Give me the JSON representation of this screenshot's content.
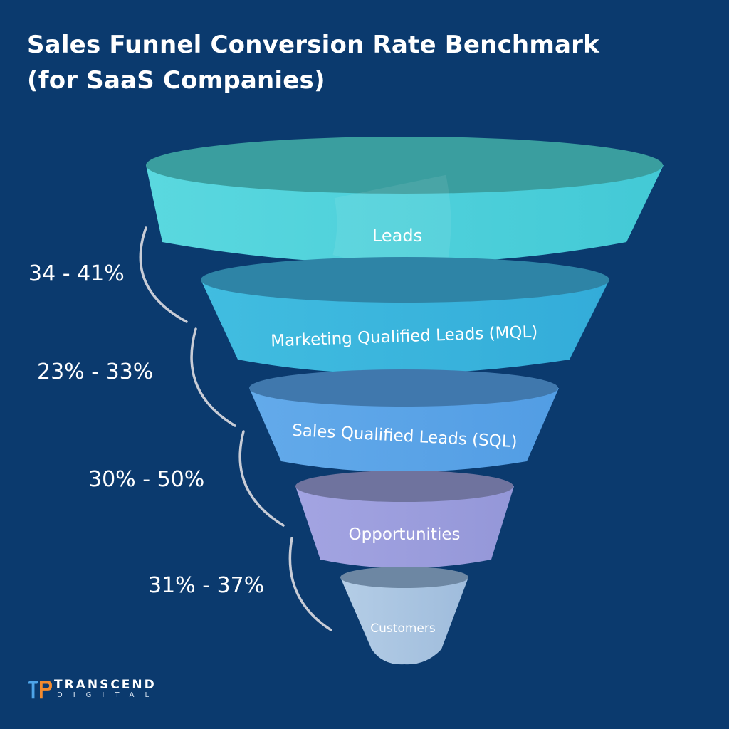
{
  "title": {
    "line1": "Sales Funnel Conversion Rate Benchmark",
    "line2": "(for SaaS Companies)"
  },
  "funnel": {
    "stages": [
      {
        "label": "Leads",
        "color": "#4fd3dc"
      },
      {
        "label": "Marketing Qualified Leads (MQL)",
        "color": "#3ab4dc"
      },
      {
        "label": "Sales Qualified Leads (SQL)",
        "color": "#5aa6e8"
      },
      {
        "label": "Opportunities",
        "color": "#9b9fe0"
      },
      {
        "label": "Customers",
        "color": "#a9c6e2"
      }
    ],
    "rates": [
      {
        "label": "34 - 41%"
      },
      {
        "label": "23% - 33%"
      },
      {
        "label": "30% - 50%"
      },
      {
        "label": "31% - 37%"
      }
    ]
  },
  "logo": {
    "name_line1": "TRANSCEND",
    "name_line2": "DIGITAL",
    "icon": "transcend-logo-icon"
  }
}
